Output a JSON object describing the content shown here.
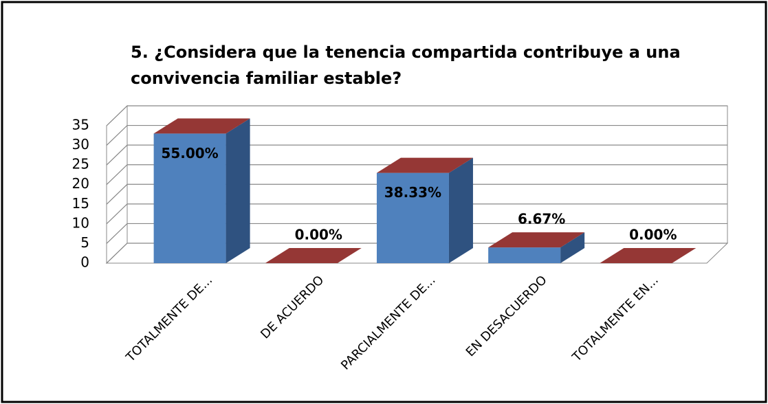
{
  "chart_data": {
    "type": "bar3d",
    "title": [
      "5. ¿Considera que la tenencia compartida contribuye a una",
      "convivencia familiar estable?"
    ],
    "categories": [
      "TOTALMENTE DE...",
      "DE ACUERDO",
      "PARCIALMENTE DE...",
      "EN DESACUERDO",
      "TOTALMENTE EN..."
    ],
    "values": [
      33,
      0,
      23,
      4,
      0
    ],
    "value_labels": [
      "55.00%",
      "0.00%",
      "38.33%",
      "6.67%",
      "0.00%"
    ],
    "color": "#4f81bd",
    "top_color": "#953735",
    "ylim": [
      0,
      35
    ],
    "yticks": [
      0,
      5,
      10,
      15,
      20,
      25,
      30,
      35
    ],
    "grid": true
  }
}
